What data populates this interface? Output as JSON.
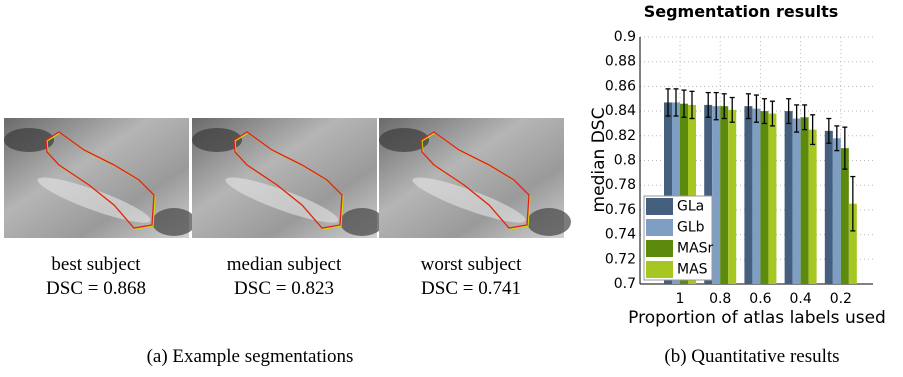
{
  "figure_a": {
    "panels": [
      {
        "name": "best subject",
        "dsc": "DSC = 0.868"
      },
      {
        "name": "median subject",
        "dsc": "DSC = 0.823"
      },
      {
        "name": "worst subject",
        "dsc": "DSC = 0.741"
      }
    ],
    "caption": "(a) Example segmentations"
  },
  "figure_b_caption": "(b) Quantitative results",
  "chart_data": {
    "type": "bar",
    "title": "Segmentation results",
    "x_label": "Proportion of atlas labels used",
    "y_label": "median DSC",
    "categories": [
      "1",
      "0.8",
      "0.6",
      "0.4",
      "0.2"
    ],
    "series": [
      {
        "name": "GLa",
        "color": "#45607e",
        "values": [
          0.847,
          0.845,
          0.844,
          0.84,
          0.824
        ],
        "errors": [
          0.011,
          0.01,
          0.01,
          0.01,
          0.01
        ]
      },
      {
        "name": "GLb",
        "color": "#7f9ec3",
        "values": [
          0.847,
          0.844,
          0.842,
          0.834,
          0.818
        ],
        "errors": [
          0.011,
          0.011,
          0.011,
          0.011,
          0.01
        ]
      },
      {
        "name": "MASr",
        "color": "#5c8a0c",
        "values": [
          0.846,
          0.844,
          0.84,
          0.835,
          0.81
        ],
        "errors": [
          0.011,
          0.01,
          0.01,
          0.01,
          0.017
        ]
      },
      {
        "name": "MAS",
        "color": "#a6c621",
        "values": [
          0.845,
          0.841,
          0.838,
          0.825,
          0.765
        ],
        "errors": [
          0.011,
          0.01,
          0.01,
          0.012,
          0.022
        ]
      }
    ],
    "ylim": [
      0.7,
      0.9
    ],
    "yticks": [
      0.7,
      0.72,
      0.74,
      0.76,
      0.78,
      0.8,
      0.82,
      0.84,
      0.86,
      0.88,
      0.9
    ],
    "grid": true,
    "legend": "lower left"
  }
}
